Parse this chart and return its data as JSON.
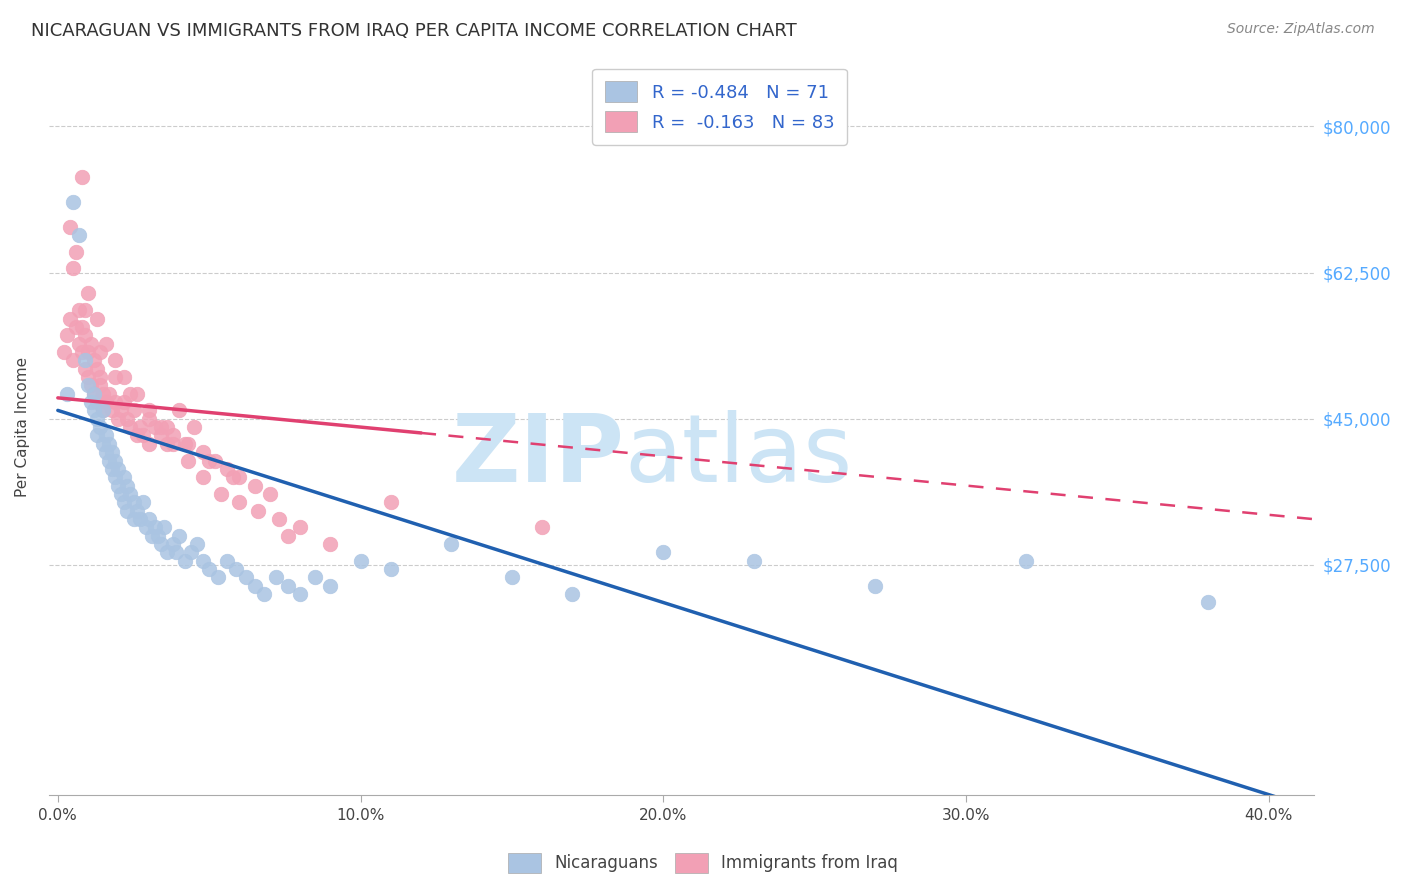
{
  "title": "NICARAGUAN VS IMMIGRANTS FROM IRAQ PER CAPITA INCOME CORRELATION CHART",
  "source": "Source: ZipAtlas.com",
  "xlabel_ticks": [
    "0.0%",
    "10.0%",
    "20.0%",
    "30.0%",
    "40.0%"
  ],
  "xlabel_tick_vals": [
    0.0,
    0.1,
    0.2,
    0.3,
    0.4
  ],
  "ylabel": "Per Capita Income",
  "ytick_labels": [
    "$27,500",
    "$45,000",
    "$62,500",
    "$80,000"
  ],
  "ytick_vals": [
    27500,
    45000,
    62500,
    80000
  ],
  "ylim": [
    0,
    88000
  ],
  "xlim": [
    -0.003,
    0.415
  ],
  "blue_R": -0.484,
  "blue_N": 71,
  "pink_R": -0.163,
  "pink_N": 83,
  "blue_color": "#aac4e2",
  "pink_color": "#f2a0b5",
  "blue_line_color": "#2060b0",
  "pink_line_color": "#e04070",
  "watermark_zip": "ZIP",
  "watermark_atlas": "atlas",
  "watermark_color": "#cce4f5",
  "legend_label_blue": "Nicaraguans",
  "legend_label_pink": "Immigrants from Iraq",
  "blue_intercept": 46000,
  "blue_slope": -115000,
  "pink_intercept": 47500,
  "pink_slope": -35000,
  "blue_scatter_x": [
    0.003,
    0.005,
    0.007,
    0.009,
    0.01,
    0.011,
    0.012,
    0.012,
    0.013,
    0.013,
    0.014,
    0.015,
    0.015,
    0.016,
    0.016,
    0.017,
    0.017,
    0.018,
    0.018,
    0.019,
    0.019,
    0.02,
    0.02,
    0.021,
    0.022,
    0.022,
    0.023,
    0.023,
    0.024,
    0.025,
    0.025,
    0.026,
    0.027,
    0.028,
    0.029,
    0.03,
    0.031,
    0.032,
    0.033,
    0.034,
    0.035,
    0.036,
    0.038,
    0.039,
    0.04,
    0.042,
    0.044,
    0.046,
    0.048,
    0.05,
    0.053,
    0.056,
    0.059,
    0.062,
    0.065,
    0.068,
    0.072,
    0.076,
    0.08,
    0.085,
    0.09,
    0.1,
    0.11,
    0.13,
    0.15,
    0.17,
    0.2,
    0.23,
    0.27,
    0.32,
    0.38
  ],
  "blue_scatter_y": [
    48000,
    71000,
    67000,
    52000,
    49000,
    47000,
    46000,
    48000,
    45000,
    43000,
    44000,
    42000,
    46000,
    41000,
    43000,
    40000,
    42000,
    39000,
    41000,
    38000,
    40000,
    37000,
    39000,
    36000,
    38000,
    35000,
    37000,
    34000,
    36000,
    35000,
    33000,
    34000,
    33000,
    35000,
    32000,
    33000,
    31000,
    32000,
    31000,
    30000,
    32000,
    29000,
    30000,
    29000,
    31000,
    28000,
    29000,
    30000,
    28000,
    27000,
    26000,
    28000,
    27000,
    26000,
    25000,
    24000,
    26000,
    25000,
    24000,
    26000,
    25000,
    28000,
    27000,
    30000,
    26000,
    24000,
    29000,
    28000,
    25000,
    28000,
    23000
  ],
  "pink_scatter_x": [
    0.002,
    0.003,
    0.004,
    0.005,
    0.006,
    0.007,
    0.007,
    0.008,
    0.008,
    0.009,
    0.009,
    0.01,
    0.01,
    0.011,
    0.011,
    0.012,
    0.012,
    0.013,
    0.013,
    0.014,
    0.014,
    0.015,
    0.015,
    0.016,
    0.017,
    0.018,
    0.019,
    0.02,
    0.021,
    0.022,
    0.023,
    0.024,
    0.025,
    0.026,
    0.027,
    0.028,
    0.03,
    0.032,
    0.034,
    0.036,
    0.038,
    0.04,
    0.042,
    0.045,
    0.048,
    0.052,
    0.056,
    0.06,
    0.065,
    0.07,
    0.004,
    0.006,
    0.008,
    0.01,
    0.013,
    0.016,
    0.019,
    0.022,
    0.026,
    0.03,
    0.034,
    0.038,
    0.043,
    0.048,
    0.054,
    0.06,
    0.066,
    0.073,
    0.08,
    0.09,
    0.005,
    0.009,
    0.014,
    0.019,
    0.024,
    0.03,
    0.036,
    0.043,
    0.05,
    0.058,
    0.076,
    0.11,
    0.16
  ],
  "pink_scatter_y": [
    53000,
    55000,
    57000,
    52000,
    56000,
    58000,
    54000,
    56000,
    53000,
    55000,
    51000,
    53000,
    50000,
    54000,
    49000,
    52000,
    48000,
    51000,
    47000,
    50000,
    49000,
    48000,
    46000,
    47000,
    48000,
    46000,
    47000,
    45000,
    46000,
    47000,
    45000,
    44000,
    46000,
    43000,
    44000,
    43000,
    42000,
    44000,
    43000,
    42000,
    43000,
    46000,
    42000,
    44000,
    41000,
    40000,
    39000,
    38000,
    37000,
    36000,
    68000,
    65000,
    74000,
    60000,
    57000,
    54000,
    52000,
    50000,
    48000,
    45000,
    44000,
    42000,
    40000,
    38000,
    36000,
    35000,
    34000,
    33000,
    32000,
    30000,
    63000,
    58000,
    53000,
    50000,
    48000,
    46000,
    44000,
    42000,
    40000,
    38000,
    31000,
    35000,
    32000
  ]
}
